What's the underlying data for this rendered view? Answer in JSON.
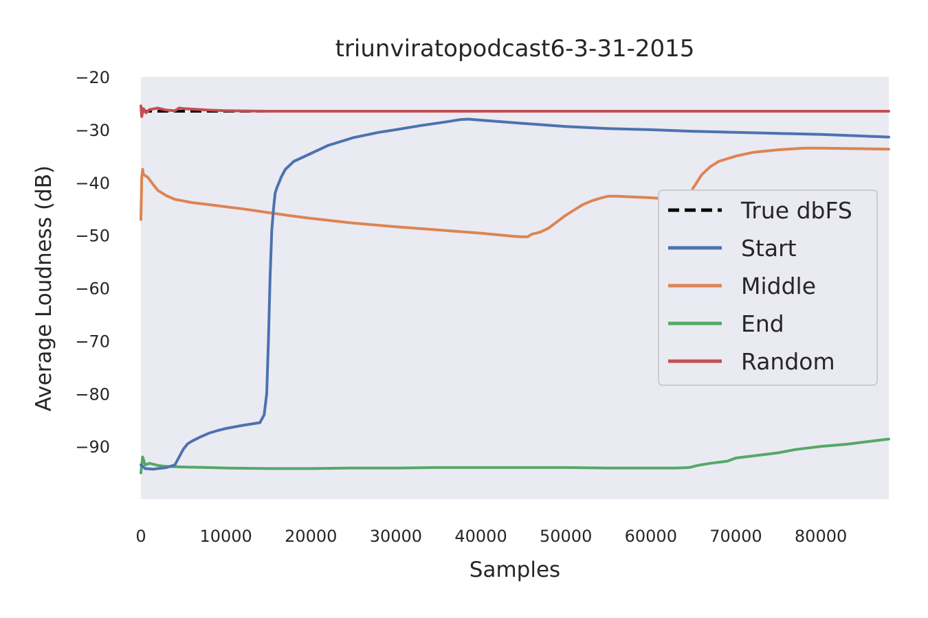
{
  "chart_data": {
    "type": "line",
    "title": "triunviratopodcast6-3-31-2015",
    "xlabel": "Samples",
    "ylabel": "Average Loudness (dB)",
    "xlim": [
      0,
      88000
    ],
    "ylim": [
      -100,
      -20
    ],
    "xticks": [
      0,
      10000,
      20000,
      30000,
      40000,
      50000,
      60000,
      70000,
      80000
    ],
    "yticks": [
      -20,
      -30,
      -40,
      -50,
      -60,
      -70,
      -80,
      -90
    ],
    "grid": false,
    "legend_position": "center-right",
    "background": "#eaeaf2",
    "reference_line": {
      "name": "True dbFS",
      "value": -26.5,
      "color": "#000000",
      "style": "dashed"
    },
    "series": [
      {
        "name": "Start",
        "color": "#4c72b0",
        "x": [
          0,
          500,
          1500,
          3000,
          4000,
          4500,
          5000,
          5500,
          6000,
          7000,
          8000,
          9000,
          10000,
          12000,
          14000,
          14500,
          14800,
          15000,
          15200,
          15400,
          15600,
          15800,
          16000,
          16500,
          17000,
          18000,
          20000,
          22000,
          25000,
          28000,
          30000,
          33000,
          36000,
          37500,
          38500,
          40000,
          45000,
          50000,
          55000,
          60000,
          65000,
          70000,
          75000,
          80000,
          85000,
          88000
        ],
        "y": [
          -93.5,
          -94.2,
          -94.3,
          -94.0,
          -93.5,
          -92.0,
          -90.5,
          -89.5,
          -89.0,
          -88.2,
          -87.5,
          -87.0,
          -86.6,
          -86.0,
          -85.5,
          -84.0,
          -80.0,
          -70.0,
          -58.0,
          -49.0,
          -45.0,
          -42.0,
          -41.0,
          -39.0,
          -37.5,
          -36.0,
          -34.5,
          -33.0,
          -31.5,
          -30.5,
          -30.0,
          -29.2,
          -28.5,
          -28.1,
          -28.0,
          -28.2,
          -28.8,
          -29.4,
          -29.8,
          -30.0,
          -30.3,
          -30.5,
          -30.7,
          -30.9,
          -31.2,
          -31.4
        ]
      },
      {
        "name": "Middle",
        "color": "#dd8452",
        "x": [
          0,
          100,
          200,
          300,
          800,
          1500,
          2000,
          3000,
          4000,
          5000,
          6000,
          8000,
          10000,
          12000,
          15000,
          18000,
          20000,
          25000,
          30000,
          35000,
          40000,
          44000,
          45000,
          45500,
          46000,
          47000,
          48000,
          49000,
          50000,
          51000,
          52000,
          53000,
          54000,
          55000,
          56000,
          60000,
          62000,
          64000,
          64500,
          65000,
          66000,
          67000,
          68000,
          70000,
          72000,
          75000,
          78000,
          80000,
          85000,
          88000
        ],
        "y": [
          -47.0,
          -39.0,
          -37.5,
          -38.5,
          -39.0,
          -40.5,
          -41.5,
          -42.5,
          -43.2,
          -43.5,
          -43.8,
          -44.2,
          -44.6,
          -45.0,
          -45.7,
          -46.4,
          -46.8,
          -47.7,
          -48.4,
          -49.0,
          -49.6,
          -50.2,
          -50.3,
          -50.3,
          -49.8,
          -49.4,
          -48.6,
          -47.4,
          -46.2,
          -45.2,
          -44.2,
          -43.5,
          -43.0,
          -42.6,
          -42.6,
          -42.9,
          -43.1,
          -43.2,
          -42.5,
          -41.0,
          -38.5,
          -37.0,
          -36.0,
          -35.0,
          -34.3,
          -33.8,
          -33.5,
          -33.5,
          -33.6,
          -33.7
        ]
      },
      {
        "name": "End",
        "color": "#55a868",
        "x": [
          0,
          200,
          500,
          1000,
          2000,
          3000,
          5000,
          8000,
          10000,
          15000,
          20000,
          25000,
          30000,
          35000,
          40000,
          45000,
          50000,
          55000,
          60000,
          63000,
          64500,
          65500,
          67000,
          69000,
          70000,
          72000,
          75000,
          77000,
          80000,
          83000,
          86000,
          88000
        ],
        "y": [
          -95.0,
          -92.0,
          -93.5,
          -93.2,
          -93.6,
          -93.8,
          -93.9,
          -94.0,
          -94.1,
          -94.2,
          -94.2,
          -94.1,
          -94.1,
          -94.0,
          -94.0,
          -94.0,
          -94.0,
          -94.1,
          -94.1,
          -94.1,
          -94.0,
          -93.6,
          -93.2,
          -92.8,
          -92.2,
          -91.8,
          -91.2,
          -90.6,
          -90.0,
          -89.6,
          -89.0,
          -88.6
        ]
      },
      {
        "name": "Random",
        "color": "#c44e52",
        "x": [
          0,
          100,
          300,
          600,
          1000,
          2000,
          3000,
          4000,
          4500,
          5000,
          8000,
          10000,
          15000,
          20000,
          30000,
          40000,
          50000,
          60000,
          70000,
          80000,
          88000
        ],
        "y": [
          -25.5,
          -27.5,
          -26.0,
          -26.8,
          -26.2,
          -25.9,
          -26.3,
          -26.4,
          -25.9,
          -26.0,
          -26.3,
          -26.4,
          -26.5,
          -26.5,
          -26.5,
          -26.5,
          -26.5,
          -26.5,
          -26.5,
          -26.5,
          -26.5
        ]
      }
    ]
  }
}
